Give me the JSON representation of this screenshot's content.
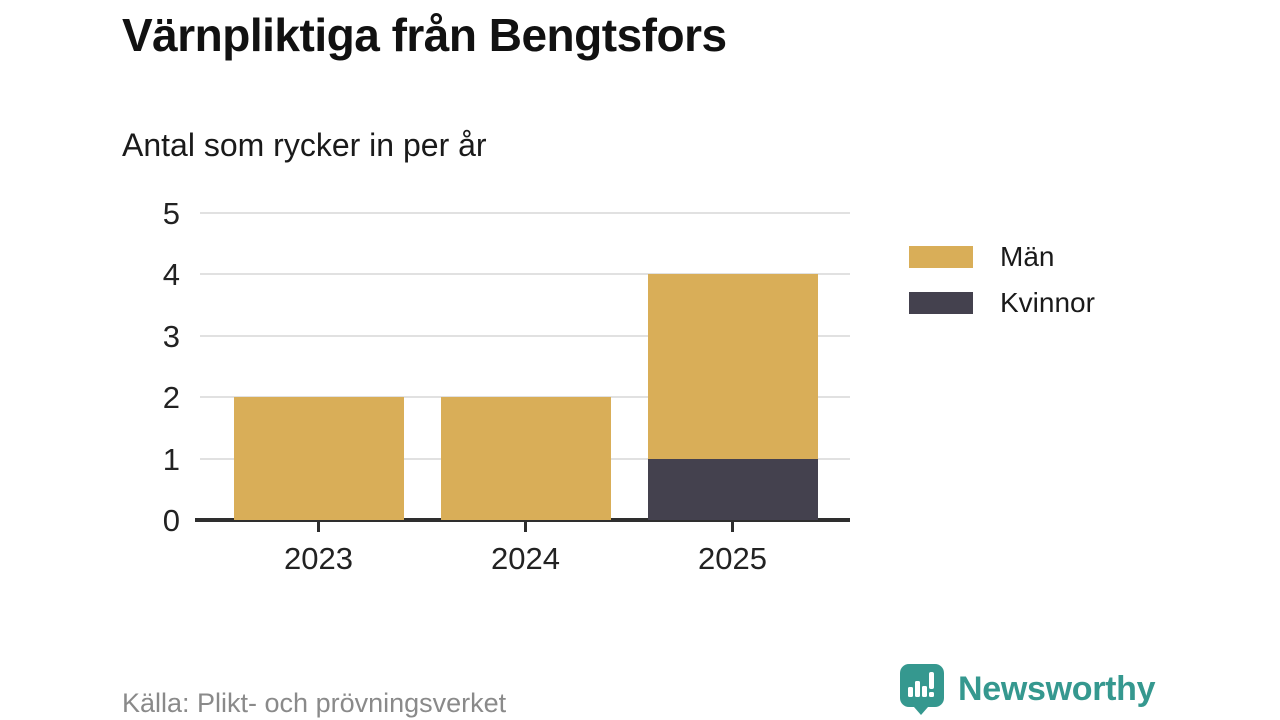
{
  "header": {
    "title": "Värnpliktiga från Bengtsfors",
    "subtitle": "Antal som rycker in per år"
  },
  "footer": {
    "source": "Källa: Plikt- och prövningsverket",
    "brand": "Newsworthy"
  },
  "colors": {
    "men": "#d9ae58",
    "women": "#44414e",
    "brand_teal": "#35988f",
    "grid": "#e1e1e1",
    "axis": "#2e2e2e",
    "text": "#222222",
    "muted": "#8a8a8a"
  },
  "chart_data": {
    "type": "bar",
    "stacked": true,
    "title": "Värnpliktiga från Bengtsfors",
    "subtitle": "Antal som rycker in per år",
    "categories": [
      "2023",
      "2024",
      "2025"
    ],
    "series": [
      {
        "name": "Män",
        "color": "#d9ae58",
        "values": [
          2,
          2,
          3
        ]
      },
      {
        "name": "Kvinnor",
        "color": "#44414e",
        "values": [
          0,
          0,
          1
        ]
      }
    ],
    "totals": [
      2,
      2,
      4
    ],
    "xlabel": "",
    "ylabel": "",
    "ylim": [
      0,
      5
    ],
    "yticks": [
      0,
      1,
      2,
      3,
      4,
      5
    ],
    "grid": true,
    "legend_position": "right"
  }
}
